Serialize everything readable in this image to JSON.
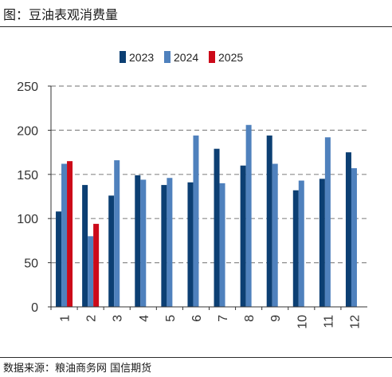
{
  "figure": {
    "title": "图：豆油表观消费量",
    "source": "数据来源：粮油商务网  国信期货"
  },
  "chart_data": {
    "type": "bar",
    "title": "",
    "xlabel": "",
    "ylabel": "",
    "categories": [
      "1",
      "2",
      "3",
      "4",
      "5",
      "6",
      "7",
      "8",
      "9",
      "10",
      "11",
      "12"
    ],
    "series": [
      {
        "name": "2023",
        "color": "#0c3f73",
        "values": [
          108,
          138,
          126,
          149,
          138,
          141,
          179,
          160,
          194,
          132,
          145,
          175
        ]
      },
      {
        "name": "2024",
        "color": "#4f81bd",
        "values": [
          162,
          80,
          166,
          144,
          146,
          194,
          140,
          206,
          162,
          143,
          192,
          157
        ]
      },
      {
        "name": "2025",
        "color": "#cc0a19",
        "values": [
          165,
          94,
          null,
          null,
          null,
          null,
          null,
          null,
          null,
          null,
          null,
          null
        ]
      }
    ],
    "ylim": [
      0,
      250
    ],
    "yticks": [
      0,
      50,
      100,
      150,
      200,
      250
    ],
    "grid": "horizontal dashed",
    "legend": "top-center"
  }
}
